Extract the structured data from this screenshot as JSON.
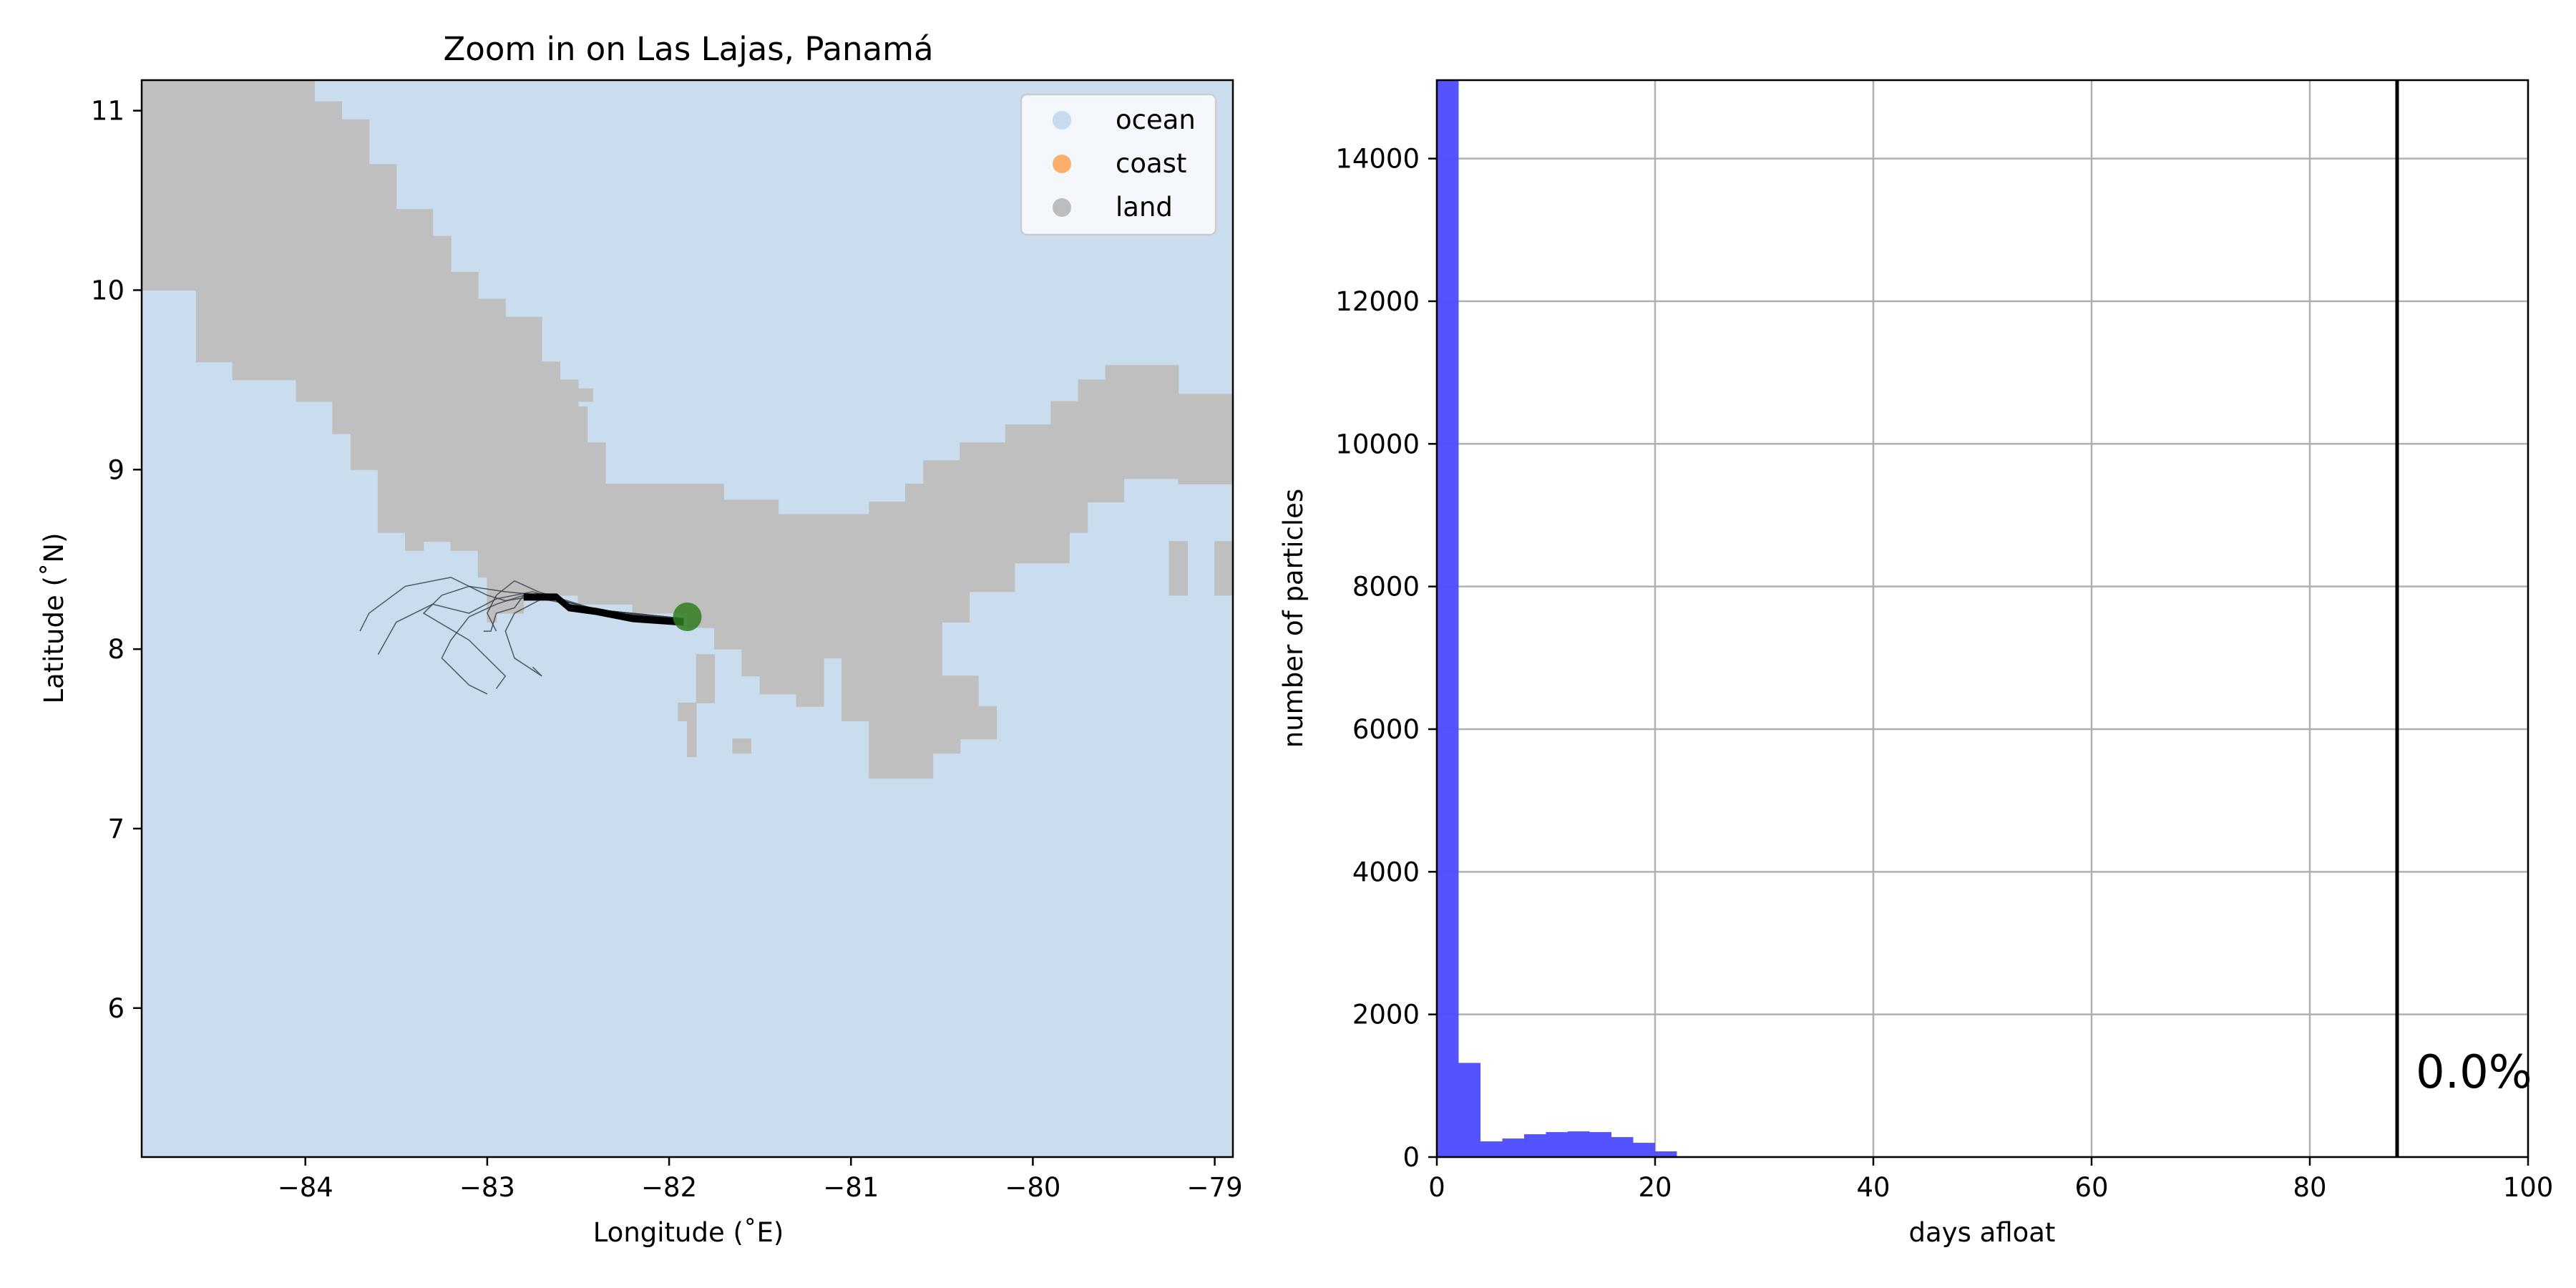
{
  "chart_data": [
    {
      "type": "map",
      "title": "Zoom in on Las Lajas, Panamá",
      "xlabel": "Longitude (˚E)",
      "ylabel": "Latitude (˚N)",
      "xlim": [
        -84.9,
        -78.9
      ],
      "ylim": [
        5.17,
        11.17
      ],
      "x_ticks": [
        -84,
        -83,
        -82,
        -81,
        -80,
        -79
      ],
      "y_ticks": [
        6,
        7,
        8,
        9,
        10,
        11
      ],
      "legend": {
        "placement": "top-right",
        "entries": [
          {
            "label": "ocean",
            "color": "#c6dbef"
          },
          {
            "label": "coast",
            "color": "#fdae6b"
          },
          {
            "label": "land",
            "color": "#bdbdbd"
          }
        ]
      },
      "colors": {
        "ocean": "#c9ddee",
        "land": "#bfbfbf",
        "release": "#2f7d1f",
        "track": "#000000"
      },
      "release_point": {
        "lon": -81.9,
        "lat": 8.18
      },
      "land_polygons": [
        [
          [
            -84.9,
            11.17
          ],
          [
            -83.95,
            11.17
          ],
          [
            -83.95,
            11.05
          ],
          [
            -83.8,
            11.05
          ],
          [
            -83.8,
            10.95
          ],
          [
            -83.65,
            10.95
          ],
          [
            -83.65,
            10.7
          ],
          [
            -83.5,
            10.7
          ],
          [
            -83.5,
            10.45
          ],
          [
            -83.3,
            10.45
          ],
          [
            -83.3,
            10.3
          ],
          [
            -83.2,
            10.3
          ],
          [
            -83.2,
            10.1
          ],
          [
            -83.05,
            10.1
          ],
          [
            -83.05,
            9.95
          ],
          [
            -82.9,
            9.95
          ],
          [
            -82.9,
            9.85
          ],
          [
            -82.7,
            9.85
          ],
          [
            -82.7,
            9.6
          ],
          [
            -82.6,
            9.6
          ],
          [
            -82.6,
            9.5
          ],
          [
            -82.5,
            9.5
          ],
          [
            -82.5,
            9.35
          ],
          [
            -82.45,
            9.35
          ],
          [
            -82.45,
            9.15
          ],
          [
            -82.35,
            9.15
          ],
          [
            -82.35,
            8.92
          ],
          [
            -81.7,
            8.92
          ],
          [
            -81.7,
            8.83
          ],
          [
            -81.4,
            8.83
          ],
          [
            -81.4,
            8.75
          ],
          [
            -80.9,
            8.75
          ],
          [
            -80.9,
            8.82
          ],
          [
            -80.7,
            8.82
          ],
          [
            -80.7,
            8.92
          ],
          [
            -80.6,
            8.92
          ],
          [
            -80.6,
            9.05
          ],
          [
            -80.4,
            9.05
          ],
          [
            -80.4,
            9.15
          ],
          [
            -80.15,
            9.15
          ],
          [
            -80.15,
            9.25
          ],
          [
            -79.9,
            9.25
          ],
          [
            -79.9,
            9.38
          ],
          [
            -79.75,
            9.38
          ],
          [
            -79.75,
            9.5
          ],
          [
            -79.6,
            9.5
          ],
          [
            -79.6,
            9.58
          ],
          [
            -79.2,
            9.58
          ],
          [
            -79.2,
            9.42
          ],
          [
            -78.9,
            9.42
          ],
          [
            -78.9,
            8.92
          ],
          [
            -79.2,
            8.92
          ],
          [
            -79.2,
            8.95
          ],
          [
            -79.5,
            8.95
          ],
          [
            -79.5,
            8.82
          ],
          [
            -79.7,
            8.82
          ],
          [
            -79.7,
            8.65
          ],
          [
            -79.8,
            8.65
          ],
          [
            -79.8,
            8.48
          ],
          [
            -80.1,
            8.48
          ],
          [
            -80.1,
            8.32
          ],
          [
            -80.35,
            8.32
          ],
          [
            -80.35,
            8.15
          ],
          [
            -80.5,
            8.15
          ],
          [
            -80.5,
            7.85
          ],
          [
            -80.3,
            7.85
          ],
          [
            -80.3,
            7.68
          ],
          [
            -80.2,
            7.68
          ],
          [
            -80.2,
            7.5
          ],
          [
            -80.4,
            7.5
          ],
          [
            -80.4,
            7.42
          ],
          [
            -80.55,
            7.42
          ],
          [
            -80.55,
            7.28
          ],
          [
            -80.9,
            7.28
          ],
          [
            -80.9,
            7.6
          ],
          [
            -81.05,
            7.6
          ],
          [
            -81.05,
            7.95
          ],
          [
            -81.15,
            7.95
          ],
          [
            -81.15,
            7.68
          ],
          [
            -81.3,
            7.68
          ],
          [
            -81.3,
            7.75
          ],
          [
            -81.5,
            7.75
          ],
          [
            -81.5,
            7.85
          ],
          [
            -81.6,
            7.85
          ],
          [
            -81.6,
            8.0
          ],
          [
            -81.75,
            8.0
          ],
          [
            -81.75,
            8.12
          ],
          [
            -81.9,
            8.12
          ],
          [
            -81.9,
            8.2
          ],
          [
            -82.2,
            8.2
          ],
          [
            -82.2,
            8.25
          ],
          [
            -82.5,
            8.25
          ],
          [
            -82.5,
            8.3
          ],
          [
            -82.8,
            8.3
          ],
          [
            -82.8,
            8.2
          ],
          [
            -82.95,
            8.2
          ],
          [
            -82.95,
            8.15
          ],
          [
            -83.0,
            8.15
          ],
          [
            -83.0,
            8.4
          ],
          [
            -83.05,
            8.4
          ],
          [
            -83.05,
            8.55
          ],
          [
            -83.2,
            8.55
          ],
          [
            -83.2,
            8.6
          ],
          [
            -83.35,
            8.6
          ],
          [
            -83.35,
            8.55
          ],
          [
            -83.45,
            8.55
          ],
          [
            -83.45,
            8.65
          ],
          [
            -83.6,
            8.65
          ],
          [
            -83.6,
            9.0
          ],
          [
            -83.75,
            9.0
          ],
          [
            -83.75,
            9.2
          ],
          [
            -83.85,
            9.2
          ],
          [
            -83.85,
            9.38
          ],
          [
            -84.05,
            9.38
          ],
          [
            -84.05,
            9.5
          ],
          [
            -84.4,
            9.5
          ],
          [
            -84.4,
            9.6
          ],
          [
            -84.6,
            9.6
          ],
          [
            -84.6,
            10.0
          ],
          [
            -84.9,
            10.0
          ]
        ],
        [
          [
            -81.75,
            7.97
          ],
          [
            -81.75,
            7.7
          ],
          [
            -81.85,
            7.7
          ],
          [
            -81.85,
            7.4
          ],
          [
            -81.9,
            7.4
          ],
          [
            -81.9,
            7.6
          ],
          [
            -81.95,
            7.6
          ],
          [
            -81.95,
            7.7
          ],
          [
            -81.85,
            7.7
          ],
          [
            -81.85,
            7.97
          ]
        ],
        [
          [
            -81.65,
            7.5
          ],
          [
            -81.65,
            7.42
          ],
          [
            -81.55,
            7.42
          ],
          [
            -81.55,
            7.5
          ]
        ],
        [
          [
            -82.5,
            9.45
          ],
          [
            -82.5,
            9.38
          ],
          [
            -82.42,
            9.38
          ],
          [
            -82.42,
            9.45
          ]
        ],
        [
          [
            -79.25,
            8.6
          ],
          [
            -79.25,
            8.3
          ],
          [
            -79.15,
            8.3
          ],
          [
            -79.15,
            8.6
          ]
        ],
        [
          [
            -79.0,
            8.6
          ],
          [
            -79.0,
            8.3
          ],
          [
            -78.9,
            8.3
          ],
          [
            -78.9,
            8.6
          ]
        ]
      ],
      "tracks": [
        [
          [
            -81.92,
            8.16
          ],
          [
            -82.2,
            8.18
          ],
          [
            -82.4,
            8.22
          ],
          [
            -82.55,
            8.24
          ],
          [
            -82.62,
            8.3
          ],
          [
            -82.8,
            8.3
          ],
          [
            -82.85,
            8.23
          ],
          [
            -82.95,
            8.2
          ],
          [
            -82.98,
            8.1
          ],
          [
            -83.02,
            8.1
          ]
        ],
        [
          [
            -81.92,
            8.17
          ],
          [
            -82.3,
            8.2
          ],
          [
            -82.55,
            8.26
          ],
          [
            -82.75,
            8.32
          ],
          [
            -82.95,
            8.28
          ],
          [
            -83.1,
            8.2
          ],
          [
            -83.3,
            8.25
          ],
          [
            -83.5,
            8.15
          ],
          [
            -83.6,
            7.97
          ]
        ],
        [
          [
            -81.92,
            8.17
          ],
          [
            -82.3,
            8.2
          ],
          [
            -82.6,
            8.27
          ],
          [
            -82.8,
            8.3
          ],
          [
            -82.95,
            8.25
          ],
          [
            -83.1,
            8.18
          ],
          [
            -83.2,
            8.05
          ],
          [
            -83.25,
            7.95
          ],
          [
            -83.1,
            7.8
          ],
          [
            -83.0,
            7.75
          ]
        ],
        [
          [
            -81.92,
            8.17
          ],
          [
            -82.4,
            8.22
          ],
          [
            -82.7,
            8.3
          ],
          [
            -82.9,
            8.27
          ],
          [
            -83.0,
            8.3
          ],
          [
            -83.2,
            8.4
          ],
          [
            -83.45,
            8.35
          ],
          [
            -83.65,
            8.2
          ],
          [
            -83.7,
            8.1
          ]
        ],
        [
          [
            -81.92,
            8.17
          ],
          [
            -82.4,
            8.22
          ],
          [
            -82.7,
            8.28
          ],
          [
            -82.85,
            8.2
          ],
          [
            -82.9,
            8.1
          ],
          [
            -82.85,
            7.95
          ],
          [
            -82.7,
            7.85
          ],
          [
            -82.75,
            7.9
          ]
        ],
        [
          [
            -81.92,
            8.17
          ],
          [
            -82.4,
            8.22
          ],
          [
            -82.7,
            8.3
          ],
          [
            -82.9,
            8.32
          ],
          [
            -83.1,
            8.35
          ],
          [
            -83.25,
            8.3
          ],
          [
            -83.35,
            8.2
          ],
          [
            -83.1,
            8.05
          ],
          [
            -82.9,
            7.85
          ],
          [
            -82.95,
            7.78
          ]
        ],
        [
          [
            -81.92,
            8.17
          ],
          [
            -82.4,
            8.22
          ],
          [
            -82.72,
            8.32
          ],
          [
            -82.85,
            8.38
          ],
          [
            -82.95,
            8.3
          ],
          [
            -83.0,
            8.2
          ],
          [
            -82.95,
            8.1
          ]
        ]
      ]
    },
    {
      "type": "histogram",
      "xlabel": "days afloat",
      "ylabel": "number of particles",
      "xlim": [
        0,
        100
      ],
      "ylim": [
        0,
        15100
      ],
      "x_ticks": [
        0,
        20,
        40,
        60,
        80,
        100
      ],
      "y_ticks": [
        0,
        2000,
        4000,
        6000,
        8000,
        10000,
        12000,
        14000
      ],
      "grid": true,
      "bar_color": "#4a4aff",
      "bin_width": 2,
      "bins": [
        {
          "start": 0,
          "value": 15100
        },
        {
          "start": 2,
          "value": 1320
        },
        {
          "start": 4,
          "value": 220
        },
        {
          "start": 6,
          "value": 260
        },
        {
          "start": 8,
          "value": 320
        },
        {
          "start": 10,
          "value": 350
        },
        {
          "start": 12,
          "value": 360
        },
        {
          "start": 14,
          "value": 350
        },
        {
          "start": 16,
          "value": 280
        },
        {
          "start": 18,
          "value": 200
        },
        {
          "start": 20,
          "value": 80
        },
        {
          "start": 22,
          "value": 10
        }
      ],
      "vline_x": 88,
      "annotation": "0.0%"
    }
  ]
}
